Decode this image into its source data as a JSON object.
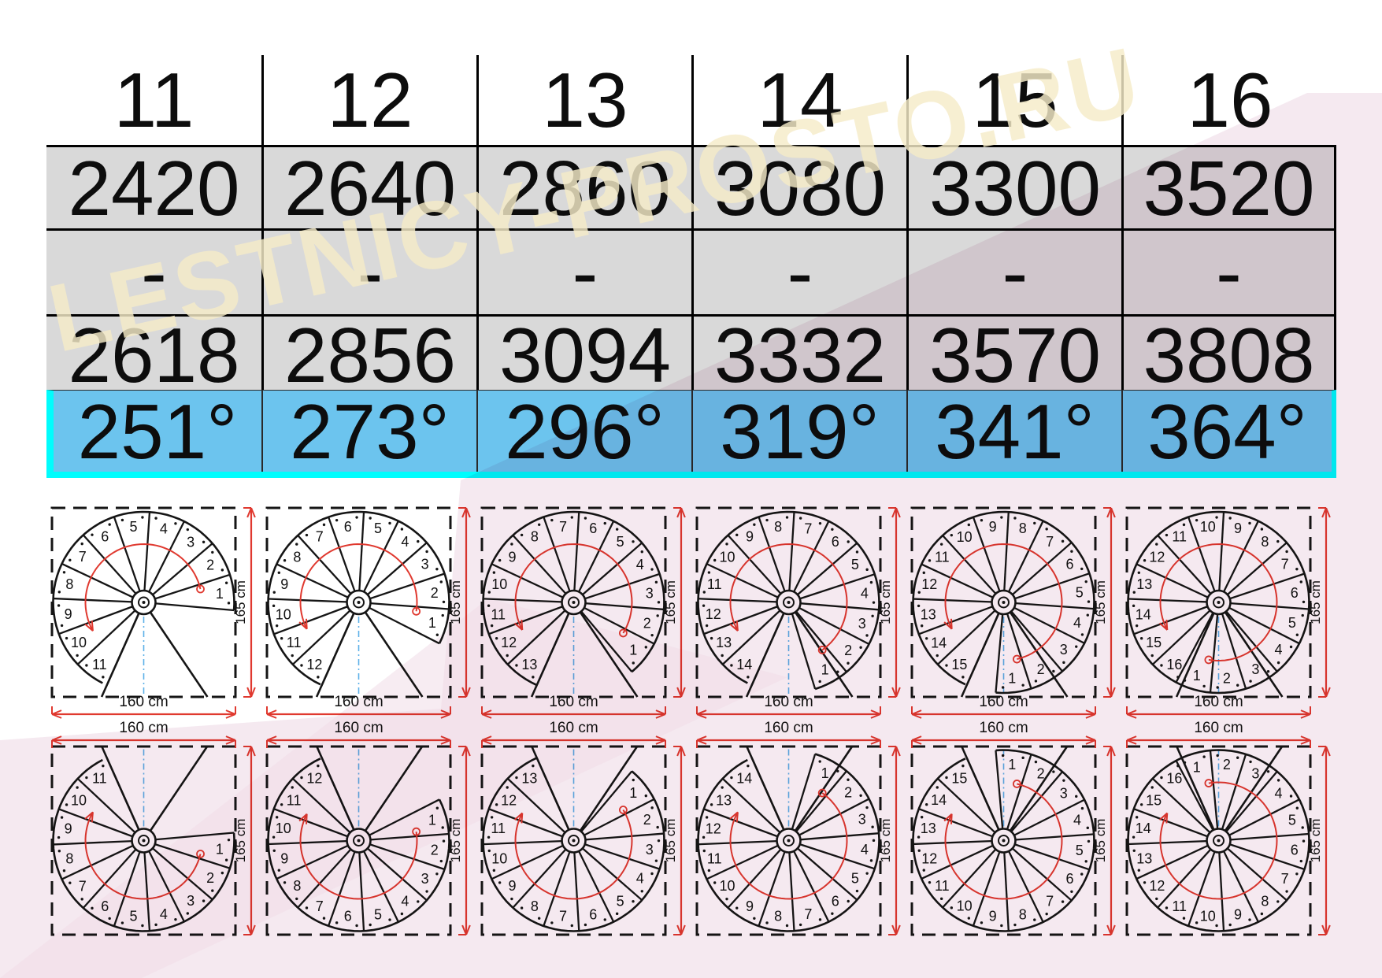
{
  "watermark": {
    "text": "LESTNICY-PROSTO.RU"
  },
  "table": {
    "columns": [
      {
        "steps": "11",
        "steps_count": 11,
        "height_min": "2420",
        "range_dash": "-",
        "height_max": "2618",
        "rotation": "251°",
        "rotation_deg": 251
      },
      {
        "steps": "12",
        "steps_count": 12,
        "height_min": "2640",
        "range_dash": "-",
        "height_max": "2856",
        "rotation": "273°",
        "rotation_deg": 273
      },
      {
        "steps": "13",
        "steps_count": 13,
        "height_min": "2860",
        "range_dash": "-",
        "height_max": "3094",
        "rotation": "296°",
        "rotation_deg": 296
      },
      {
        "steps": "14",
        "steps_count": 14,
        "height_min": "3080",
        "range_dash": "-",
        "height_max": "3332",
        "rotation": "319°",
        "rotation_deg": 319
      },
      {
        "steps": "15",
        "steps_count": 15,
        "height_min": "3300",
        "range_dash": "-",
        "height_max": "3570",
        "rotation": "341°",
        "rotation_deg": 341
      },
      {
        "steps": "16",
        "steps_count": 16,
        "height_min": "3520",
        "range_dash": "-",
        "height_max": "3808",
        "rotation": "364°",
        "rotation_deg": 364
      }
    ]
  },
  "diagrams": {
    "width_label": "160 cm",
    "height_label": "165 cm"
  },
  "colors": {
    "row_blue": "#6cc4ee",
    "cyan_border": "#00fdfd",
    "row_gray": "#d9d9d9",
    "pink": "#f5e9f0",
    "pink_dark": "#f0dde8",
    "red": "#e0392f",
    "line_dark": "#151515",
    "axis_blue": "#5bb0e8",
    "watermark_cream": "#f5ecc8"
  }
}
